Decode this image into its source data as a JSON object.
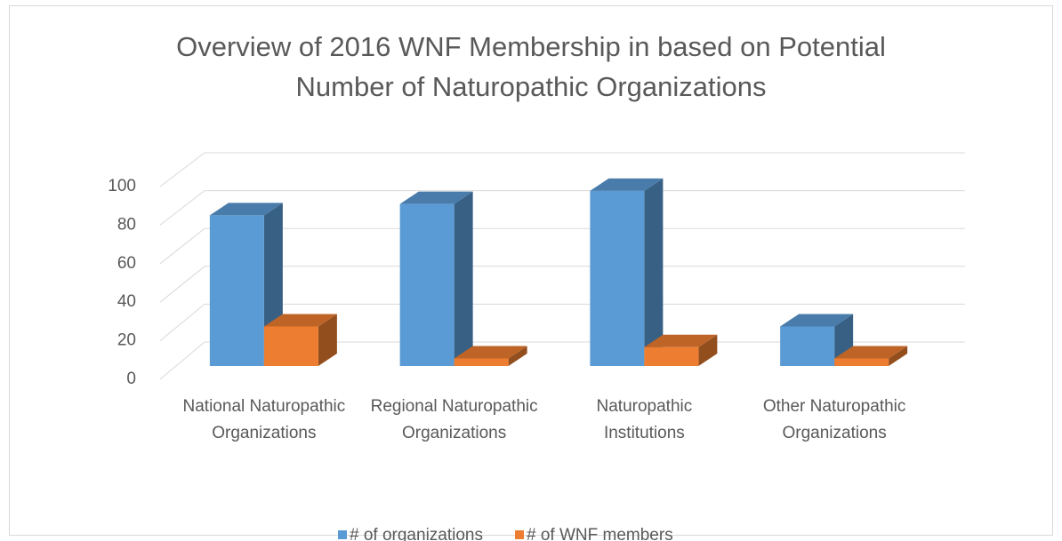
{
  "chart_data": {
    "type": "bar3d",
    "title": "Overview of 2016 WNF Membership in based on Potential Number of Naturopathic Organizations",
    "categories": [
      "National Naturopathic Organizations",
      "Regional Naturopathic Organizations",
      "Naturopathic Institutions",
      "Other Naturopathic Organizations"
    ],
    "series": [
      {
        "name": "# of organizations",
        "color": "#5b9bd5",
        "values": [
          80,
          86,
          93,
          21
        ]
      },
      {
        "name": "# of WNF members",
        "color": "#ed7d31",
        "values": [
          21,
          4,
          10,
          4
        ]
      }
    ],
    "ylim": [
      0,
      100
    ],
    "yticks": [
      0,
      20,
      40,
      60,
      80,
      100
    ],
    "grid": true,
    "legend": "bottom"
  }
}
